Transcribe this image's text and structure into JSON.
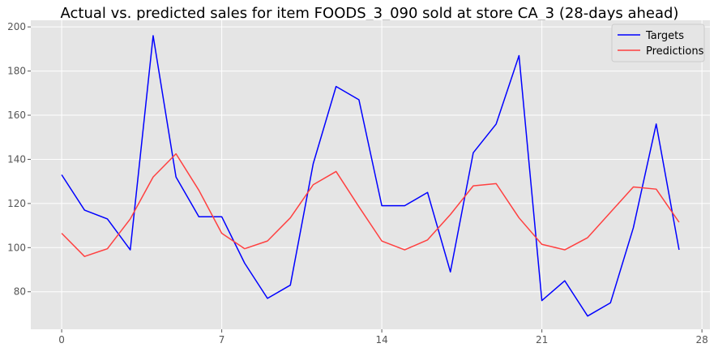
{
  "chart_data": {
    "type": "line",
    "title": "Actual vs. predicted sales for item FOODS_3_090 sold at store CA_3 (28-days ahead)",
    "xlabel": "",
    "ylabel": "",
    "x": [
      0,
      1,
      2,
      3,
      4,
      5,
      6,
      7,
      8,
      9,
      10,
      11,
      12,
      13,
      14,
      15,
      16,
      17,
      18,
      19,
      20,
      21,
      22,
      23,
      24,
      25,
      26,
      27
    ],
    "xlim": [
      -1.35,
      28.35
    ],
    "ylim": [
      63,
      203
    ],
    "xticks": [
      0,
      7,
      14,
      21,
      28
    ],
    "yticks": [
      80,
      100,
      120,
      140,
      160,
      180,
      200
    ],
    "grid": true,
    "legend_position": "top-right",
    "series": [
      {
        "name": "Targets",
        "color": "#0000ff",
        "values": [
          133,
          117,
          113,
          99,
          196,
          132,
          114,
          114,
          93,
          77,
          83,
          138,
          173,
          167,
          119,
          119,
          125,
          89,
          143,
          156,
          187,
          76,
          85,
          69,
          75,
          109,
          156,
          99
        ]
      },
      {
        "name": "Predictions",
        "color": "#ff4040",
        "values": [
          106.5,
          96,
          99.5,
          113,
          132,
          142.5,
          126,
          106.5,
          99.5,
          103,
          113.5,
          128.5,
          134.5,
          118.5,
          103,
          99,
          103.5,
          115,
          128,
          129,
          113.5,
          101.5,
          99,
          104.5,
          116,
          127.5,
          126.5,
          111.5
        ]
      }
    ]
  }
}
